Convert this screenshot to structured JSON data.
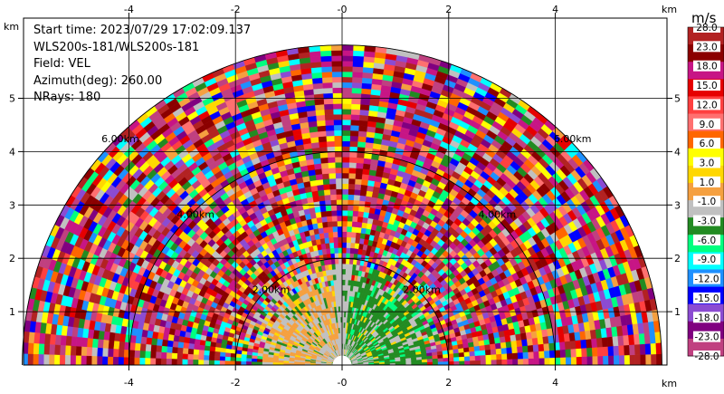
{
  "info": {
    "start_time": "Start time: 2023/07/29 17:02:09.137",
    "instrument": "WLS200s-181/WLS200s-181",
    "field": "Field: VEL",
    "azimuth": "Azimuth(deg): 260.00",
    "nrays": "NRays: 180"
  },
  "axes": {
    "x_unit": "km",
    "y_unit": "km",
    "x_ticks": [
      "-4",
      "-2",
      "-0",
      "2",
      "4"
    ],
    "x_tick_values": [
      -4,
      -2,
      0,
      2,
      4
    ],
    "y_ticks": [
      "1",
      "2",
      "3",
      "4",
      "5"
    ],
    "y_tick_values": [
      1,
      2,
      3,
      4,
      5
    ]
  },
  "range_rings": [
    {
      "label": "2.00km",
      "radius_km": 2
    },
    {
      "label": "4.00km",
      "radius_km": 4
    },
    {
      "label": "6.00km",
      "radius_km": 6
    }
  ],
  "colorbar": {
    "unit": "m/s",
    "labels": [
      "28.0",
      "23.0",
      "18.0",
      "15.0",
      "12.0",
      "9.0",
      "6.0",
      "3.0",
      "1.0",
      "-1.0",
      "-3.0",
      "-6.0",
      "-9.0",
      "-12.0",
      "-15.0",
      "-18.0",
      "-23.0",
      "-28.0"
    ],
    "colors": [
      "#b22222",
      "#8b0000",
      "#c71585",
      "#e60000",
      "#ff4040",
      "#ff7070",
      "#ff6600",
      "#ffff00",
      "#ffd700",
      "#f5a040",
      "#c0c0c0",
      "#228b22",
      "#00ff7f",
      "#00ffff",
      "#1e90ff",
      "#0000ff",
      "#8b4bd2",
      "#800080",
      "#c04080"
    ]
  },
  "chart_data": {
    "type": "heatmap",
    "title": "",
    "xlabel": "km",
    "ylabel": "km",
    "xlim": [
      -5.9,
      6.0
    ],
    "ylim": [
      0,
      5.9
    ],
    "field": "VEL",
    "units": "m/s",
    "max_range_km": 6.0,
    "range_rings_km": [
      2,
      4,
      6
    ],
    "color_levels": [
      -28,
      -23,
      -18,
      -15,
      -12,
      -9,
      -6,
      -3,
      -1,
      1,
      3,
      6,
      9,
      12,
      15,
      18,
      23,
      28
    ],
    "regions": [
      {
        "range_km": [
          0,
          2.0
        ],
        "azimuth_side": "left",
        "dominant": "1.0 to 3.0 / -1.0 to 1.0"
      },
      {
        "range_km": [
          0,
          2.0
        ],
        "azimuth_side": "right",
        "dominant": "-3.0 to -1.0"
      },
      {
        "range_km": [
          2.0,
          6.0
        ],
        "azimuth_side": "all",
        "dominant": "noise (all levels)"
      }
    ]
  }
}
